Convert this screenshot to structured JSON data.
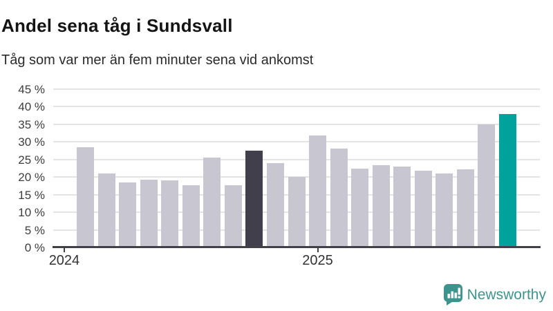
{
  "header": {
    "title": "Andel sena tåg i Sundsvall",
    "subtitle": "Tåg som var mer än fem minuter sena vid ankomst"
  },
  "chart_data": {
    "type": "bar",
    "title": "Andel sena tåg i Sundsvall",
    "subtitle": "Tåg som var mer än fem minuter sena vid ankomst",
    "xlabel": "",
    "ylabel": "",
    "unit": "percent",
    "values": [
      28.4,
      21.0,
      18.5,
      19.3,
      19.0,
      17.7,
      25.5,
      17.7,
      27.5,
      23.9,
      20.1,
      31.8,
      28.2,
      22.5,
      23.4,
      23.0,
      21.9,
      21.1,
      22.2,
      35.0,
      38.0
    ],
    "dark_bar_index": 8,
    "teal_bar_index": 20,
    "dark_bar_value": 27.5,
    "teal_bar_value": 38.0,
    "colors": {
      "bar_default": "#c8c7d1",
      "bar_dark": "#413f4b",
      "bar_teal": "#00a39b",
      "gridline": "#e4e4e7",
      "axis": "#414049"
    },
    "ylim": [
      0,
      45
    ],
    "y_tick_step": 5,
    "y_tick_labels": [
      "45 %",
      "40 %",
      "35 %",
      "30 %",
      "25 %",
      "20 %",
      "15 %",
      "10 %",
      "5 %",
      "0 %"
    ],
    "x_ticks": [
      {
        "label": "2024",
        "bar_index": -1
      },
      {
        "label": "2025",
        "bar_index": 11
      }
    ],
    "grid": true,
    "legend": false
  },
  "footer": {
    "brand": "Newsworthy",
    "brand_color": "#3d948d"
  }
}
